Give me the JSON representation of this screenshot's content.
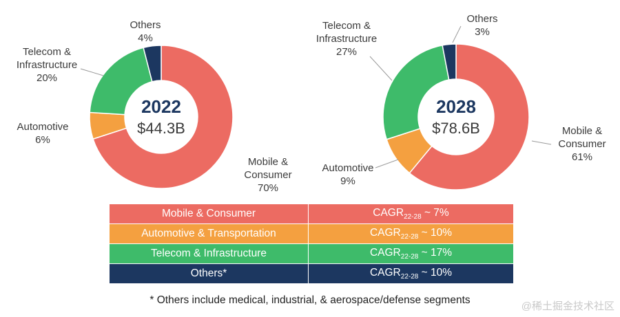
{
  "chart_data": [
    {
      "type": "pie",
      "style": "donut",
      "center_year": "2022",
      "center_value": "$44.3B",
      "slices": [
        {
          "name": "Mobile & Consumer",
          "label_lines": [
            "Mobile &",
            "Consumer"
          ],
          "pct_label": "70%",
          "value": 70,
          "color": "#ec6b62"
        },
        {
          "name": "Automotive",
          "label_lines": [
            "Automotive"
          ],
          "pct_label": "6%",
          "value": 6,
          "color": "#f4a040"
        },
        {
          "name": "Telecom & Infrastructure",
          "label_lines": [
            "Telecom &",
            "Infrastructure"
          ],
          "pct_label": "20%",
          "value": 20,
          "color": "#3ebb6a"
        },
        {
          "name": "Others",
          "label_lines": [
            "Others"
          ],
          "pct_label": "4%",
          "value": 4,
          "color": "#1c3760"
        }
      ]
    },
    {
      "type": "pie",
      "style": "donut",
      "center_year": "2028",
      "center_value": "$78.6B",
      "slices": [
        {
          "name": "Mobile & Consumer",
          "label_lines": [
            "Mobile &",
            "Consumer"
          ],
          "pct_label": "61%",
          "value": 61,
          "color": "#ec6b62"
        },
        {
          "name": "Automotive",
          "label_lines": [
            "Automotive"
          ],
          "pct_label": "9%",
          "value": 9,
          "color": "#f4a040"
        },
        {
          "name": "Telecom & Infrastructure",
          "label_lines": [
            "Telecom &",
            "Infrastructure"
          ],
          "pct_label": "27%",
          "value": 27,
          "color": "#3ebb6a"
        },
        {
          "name": "Others",
          "label_lines": [
            "Others"
          ],
          "pct_label": "3%",
          "value": 3,
          "color": "#1c3760"
        }
      ]
    }
  ],
  "cagr_table": {
    "rows": [
      {
        "segment": "Mobile & Consumer",
        "cagr_prefix": "CAGR",
        "cagr_sub": "22-28",
        "cagr_value": " ~ 7%",
        "color": "#ec6b62"
      },
      {
        "segment": "Automotive & Transportation",
        "cagr_prefix": "CAGR",
        "cagr_sub": "22-28",
        "cagr_value": " ~ 10%",
        "color": "#f4a040"
      },
      {
        "segment": "Telecom & Infrastructure",
        "cagr_prefix": "CAGR",
        "cagr_sub": "22-28",
        "cagr_value": " ~ 17%",
        "color": "#3ebb6a"
      },
      {
        "segment": "Others*",
        "cagr_prefix": "CAGR",
        "cagr_sub": "22-28",
        "cagr_value": " ~ 10%",
        "color": "#1c3760"
      }
    ]
  },
  "footnote": "* Others include medical, industrial, & aerospace/defense segments",
  "watermark": "@稀土掘金技术社区"
}
